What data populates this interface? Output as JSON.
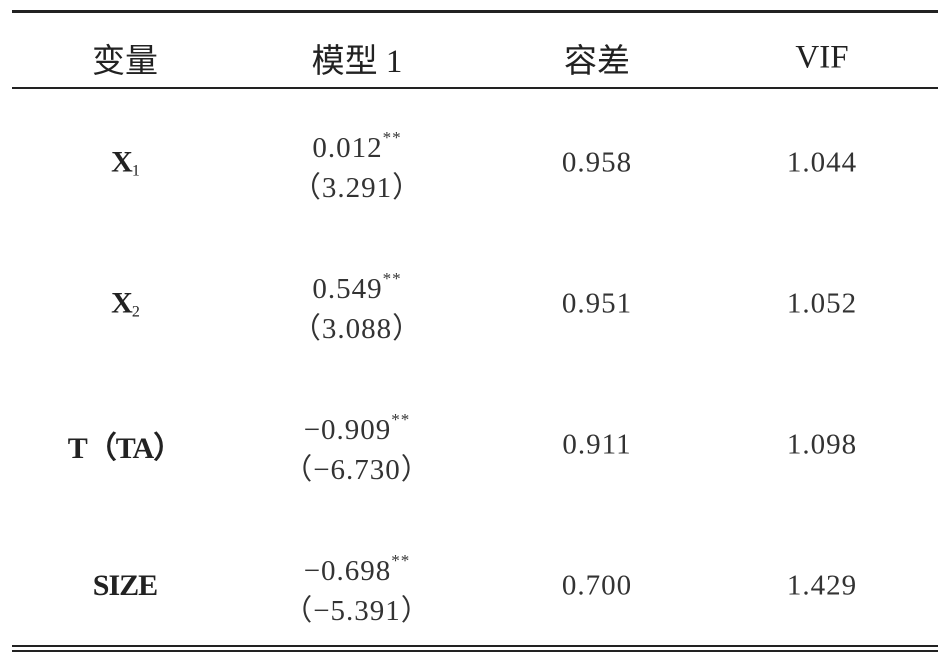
{
  "table": {
    "header": [
      "变量",
      "模型 1",
      "容差",
      "VIF"
    ],
    "rows": [
      {
        "variable": "X",
        "subscript": "1",
        "coefficient": "0.012",
        "significance": "**",
        "t_value": "（3.291）",
        "tolerance": "0.958",
        "vif": "1.044"
      },
      {
        "variable": "X",
        "subscript": "2",
        "coefficient": "0.549",
        "significance": "**",
        "t_value": "（3.088）",
        "tolerance": "0.951",
        "vif": "1.052"
      },
      {
        "variable": "T（TA）",
        "subscript": null,
        "coefficient": "−0.909",
        "significance": "**",
        "t_value": "（−6.730）",
        "tolerance": "0.911",
        "vif": "1.098"
      },
      {
        "variable": "SIZE",
        "subscript": null,
        "coefficient": "−0.698",
        "significance": "**",
        "t_value": "（−5.391）",
        "tolerance": "0.700",
        "vif": "1.429"
      }
    ]
  }
}
